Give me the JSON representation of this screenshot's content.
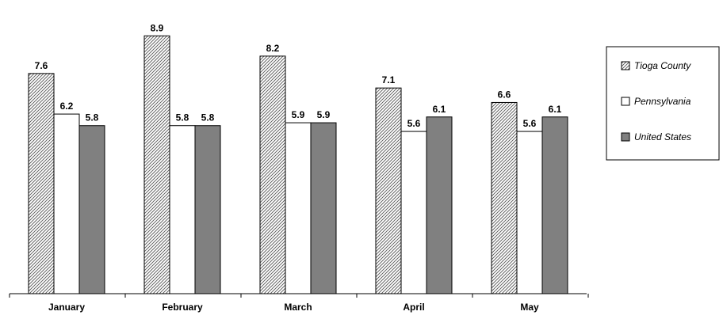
{
  "chart_data": {
    "type": "bar",
    "categories": [
      "January",
      "February",
      "March",
      "April",
      "May"
    ],
    "series": [
      {
        "name": "Tioga County",
        "values": [
          7.6,
          8.9,
          8.2,
          7.1,
          6.6
        ],
        "fill": "hatch",
        "color": "#808080"
      },
      {
        "name": "Pennsylvania",
        "values": [
          6.2,
          5.8,
          5.9,
          5.6,
          5.6
        ],
        "fill": "solid",
        "color": "#ffffff"
      },
      {
        "name": "United States",
        "values": [
          5.8,
          5.8,
          5.9,
          6.1,
          6.1
        ],
        "fill": "solid",
        "color": "#808080"
      }
    ],
    "value_labels": [
      [
        "7.6",
        "8.9",
        "8.2",
        "7.1",
        "6.6"
      ],
      [
        "6.2",
        "5.8",
        "5.9",
        "5.6",
        "5.6"
      ],
      [
        "5.8",
        "5.8",
        "5.9",
        "6.1",
        "6.1"
      ]
    ],
    "ylim": [
      0,
      9.7
    ],
    "grid": false,
    "legend_position": "right",
    "data_labels": true
  }
}
